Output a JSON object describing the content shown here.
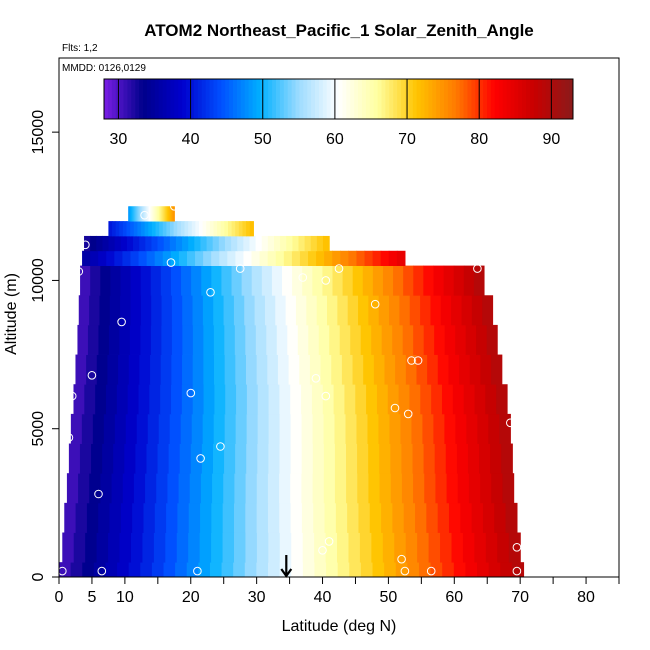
{
  "chart_data": {
    "type": "heatmap",
    "title": "ATOM2 Northeast_Pacific_1 Solar_Zenith_Angle",
    "flights_label": "Flts: 1,2",
    "date_label": "MMDD: 0126,0129",
    "xlabel": "Latitude (deg N)",
    "ylabel": "Altitude (m)",
    "xlim": [
      0,
      85
    ],
    "ylim": [
      0,
      17500
    ],
    "x_ticks": [
      0,
      5,
      10,
      20,
      30,
      40,
      50,
      60,
      70,
      80
    ],
    "x_minor_ticks": [
      15,
      25,
      35,
      45,
      55,
      65,
      75,
      85
    ],
    "y_ticks": [
      0,
      5000,
      10000,
      15000
    ],
    "colorbar": {
      "min": 28,
      "max": 93,
      "ticks": [
        30,
        40,
        50,
        60,
        70,
        80,
        90
      ],
      "colors": [
        "#7a1fe6",
        "#00008b",
        "#0000cd",
        "#0050ff",
        "#00b0ff",
        "#9fdcff",
        "#ffffff",
        "#ffffa0",
        "#ffc400",
        "#ff7a00",
        "#ff0000",
        "#c80000",
        "#8b1a1a"
      ]
    },
    "bands": [
      {
        "alt_bottom": 0,
        "alt_top": 500,
        "lat_start": 0.0,
        "lat_end": 70.5,
        "sza_start": 30,
        "sza_end": 90
      },
      {
        "alt_bottom": 500,
        "alt_top": 1500,
        "lat_start": 0.5,
        "lat_end": 70.0,
        "sza_start": 30,
        "sza_end": 90
      },
      {
        "alt_bottom": 1500,
        "alt_top": 2500,
        "lat_start": 0.8,
        "lat_end": 69.5,
        "sza_start": 30,
        "sza_end": 90
      },
      {
        "alt_bottom": 2500,
        "alt_top": 3500,
        "lat_start": 1.2,
        "lat_end": 69.0,
        "sza_start": 30,
        "sza_end": 90
      },
      {
        "alt_bottom": 3500,
        "alt_top": 4500,
        "lat_start": 1.5,
        "lat_end": 68.8,
        "sza_start": 30,
        "sza_end": 90
      },
      {
        "alt_bottom": 4500,
        "alt_top": 5500,
        "lat_start": 1.8,
        "lat_end": 68.5,
        "sza_start": 30,
        "sza_end": 90
      },
      {
        "alt_bottom": 5500,
        "alt_top": 6500,
        "lat_start": 2.2,
        "lat_end": 68.0,
        "sza_start": 30,
        "sza_end": 90
      },
      {
        "alt_bottom": 6500,
        "alt_top": 7500,
        "lat_start": 2.5,
        "lat_end": 67.2,
        "sza_start": 30,
        "sza_end": 90
      },
      {
        "alt_bottom": 7500,
        "alt_top": 8500,
        "lat_start": 2.8,
        "lat_end": 66.5,
        "sza_start": 30,
        "sza_end": 90
      },
      {
        "alt_bottom": 8500,
        "alt_top": 9500,
        "lat_start": 3.0,
        "lat_end": 65.8,
        "sza_start": 30,
        "sza_end": 90
      },
      {
        "alt_bottom": 9500,
        "alt_top": 10500,
        "lat_start": 3.2,
        "lat_end": 64.5,
        "sza_start": 30,
        "sza_end": 90
      },
      {
        "alt_bottom": 10500,
        "alt_top": 11000,
        "lat_start": 3.5,
        "lat_end": 52.5,
        "sza_start": 35,
        "sza_end": 85
      },
      {
        "alt_bottom": 11000,
        "alt_top": 11500,
        "lat_start": 3.8,
        "lat_end": 41.0,
        "sza_start": 32,
        "sza_end": 72
      },
      {
        "alt_bottom": 11500,
        "alt_top": 12000,
        "lat_start": 7.5,
        "lat_end": 29.5,
        "sza_start": 40,
        "sza_end": 72
      },
      {
        "alt_bottom": 12000,
        "alt_top": 12500,
        "lat_start": 10.5,
        "lat_end": 17.5,
        "sza_start": 48,
        "sza_end": 75
      }
    ],
    "sample_points": [
      [
        0.5,
        200
      ],
      [
        1.5,
        4700
      ],
      [
        2.0,
        6100
      ],
      [
        5.0,
        6800
      ],
      [
        6.0,
        2800
      ],
      [
        6.5,
        200
      ],
      [
        9.5,
        8600
      ],
      [
        2.0,
        11200
      ],
      [
        3.0,
        10300
      ],
      [
        4.0,
        11200
      ],
      [
        13.0,
        12200
      ],
      [
        17.0,
        10600
      ],
      [
        17.5,
        12500
      ],
      [
        20.0,
        6200
      ],
      [
        21.5,
        4000
      ],
      [
        21.0,
        200
      ],
      [
        23.0,
        9600
      ],
      [
        24.5,
        4400
      ],
      [
        27.5,
        10400
      ],
      [
        37.0,
        10100
      ],
      [
        39.0,
        6700
      ],
      [
        40.5,
        6100
      ],
      [
        41.0,
        1200
      ],
      [
        40.0,
        900
      ],
      [
        40.5,
        10000
      ],
      [
        42.5,
        10400
      ],
      [
        48.0,
        9200
      ],
      [
        51.0,
        5700
      ],
      [
        52.0,
        600
      ],
      [
        52.5,
        200
      ],
      [
        53.0,
        5500
      ],
      [
        53.5,
        7300
      ],
      [
        54.5,
        7300
      ],
      [
        56.5,
        200
      ],
      [
        63.5,
        10400
      ],
      [
        68.5,
        5200
      ],
      [
        69.5,
        1000
      ],
      [
        69.5,
        200
      ]
    ],
    "arrow_marker_lat": 34.5
  }
}
